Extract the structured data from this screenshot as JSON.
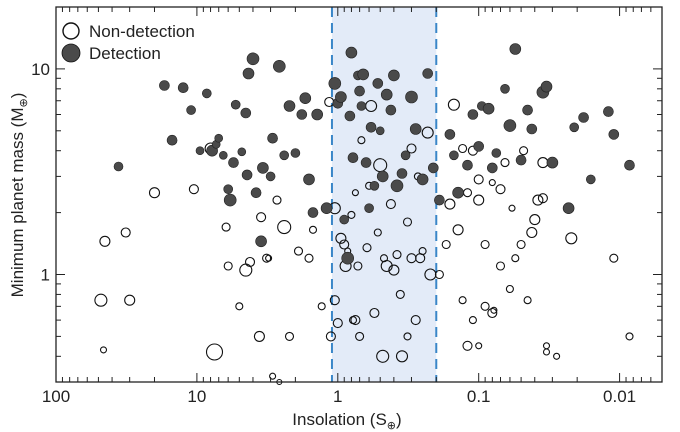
{
  "chart_data": {
    "type": "scatter",
    "xlabel": "Insolation (S",
    "xlabel_sub": "⊕",
    "xlabel_close": ")",
    "ylabel": "Minimum planet mass (M",
    "ylabel_sub": "⊕",
    "ylabel_close": ")",
    "xscale": "log",
    "yscale": "log",
    "x_reversed": true,
    "xlim": [
      100,
      0.005
    ],
    "ylim": [
      0.3,
      20
    ],
    "xticks": [
      {
        "value": 100,
        "label": "100"
      },
      {
        "value": 10,
        "label": "10"
      },
      {
        "value": 1,
        "label": "1"
      },
      {
        "value": 0.1,
        "label": "0.1"
      },
      {
        "value": 0.01,
        "label": "0.01"
      }
    ],
    "yticks": [
      {
        "value": 1,
        "label": "1"
      },
      {
        "value": 10,
        "label": "10"
      }
    ],
    "grid": false,
    "legend_position": "top-left",
    "shaded_band": {
      "x_from": 1.1,
      "x_to": 0.2,
      "color": "#e3ebf8",
      "edge_color": "#3a86c8"
    },
    "series": [
      {
        "name": "Non-detection",
        "style": "open",
        "color": "#111111",
        "points": [
          [
            48,
            0.75,
            12
          ],
          [
            45,
            1.45,
            10
          ],
          [
            32,
            1.6,
            9
          ],
          [
            30,
            0.75,
            10
          ],
          [
            20,
            2.5,
            10
          ],
          [
            46,
            0.43,
            6
          ],
          [
            10.5,
            2.6,
            9
          ],
          [
            8.0,
            4.1,
            11
          ],
          [
            7.5,
            0.42,
            16
          ],
          [
            6.2,
            1.7,
            8
          ],
          [
            6.0,
            1.1,
            8
          ],
          [
            5.0,
            0.7,
            7
          ],
          [
            4.5,
            1.05,
            12
          ],
          [
            4.2,
            1.15,
            9
          ],
          [
            3.6,
            0.5,
            10
          ],
          [
            3.5,
            1.9,
            9
          ],
          [
            3.2,
            1.2,
            8
          ],
          [
            3.1,
            1.2,
            6
          ],
          [
            2.9,
            0.32,
            6
          ],
          [
            2.7,
            2.3,
            8
          ],
          [
            2.6,
            0.3,
            5
          ],
          [
            2.4,
            1.7,
            13
          ],
          [
            2.2,
            0.5,
            8
          ],
          [
            1.9,
            1.3,
            8
          ],
          [
            1.6,
            1.2,
            8
          ],
          [
            1.5,
            1.65,
            7
          ],
          [
            1.3,
            0.7,
            7
          ],
          [
            1.15,
            6.9,
            9
          ],
          [
            1.12,
            0.5,
            9
          ],
          [
            1.05,
            2.1,
            11
          ],
          [
            1.05,
            0.75,
            9
          ],
          [
            1.0,
            0.58,
            9
          ],
          [
            0.95,
            1.5,
            10
          ],
          [
            0.9,
            1.4,
            9
          ],
          [
            0.88,
            1.1,
            11
          ],
          [
            0.85,
            1.3,
            6
          ],
          [
            0.8,
            1.95,
            7
          ],
          [
            0.78,
            0.6,
            7
          ],
          [
            0.75,
            0.6,
            9
          ],
          [
            0.75,
            2.5,
            6
          ],
          [
            0.72,
            1.1,
            8
          ],
          [
            0.7,
            0.5,
            8
          ],
          [
            0.68,
            4.5,
            7
          ],
          [
            0.62,
            1.35,
            8
          ],
          [
            0.6,
            2.7,
            7
          ],
          [
            0.58,
            6.6,
            11
          ],
          [
            0.55,
            0.65,
            9
          ],
          [
            0.52,
            1.6,
            7
          ],
          [
            0.5,
            3.4,
            13
          ],
          [
            0.48,
            0.4,
            12
          ],
          [
            0.47,
            1.2,
            7
          ],
          [
            0.45,
            1.1,
            11
          ],
          [
            0.42,
            2.2,
            9
          ],
          [
            0.4,
            1.05,
            10
          ],
          [
            0.38,
            1.25,
            8
          ],
          [
            0.36,
            0.8,
            8
          ],
          [
            0.35,
            0.4,
            11
          ],
          [
            0.32,
            0.5,
            7
          ],
          [
            0.32,
            1.8,
            8
          ],
          [
            0.3,
            4.1,
            9
          ],
          [
            0.3,
            1.2,
            9
          ],
          [
            0.28,
            0.6,
            9
          ],
          [
            0.27,
            3.0,
            7
          ],
          [
            0.26,
            1.2,
            9
          ],
          [
            0.25,
            1.3,
            7
          ],
          [
            0.23,
            4.9,
            11
          ],
          [
            0.22,
            1.0,
            11
          ],
          [
            0.19,
            1.0,
            8
          ],
          [
            0.17,
            1.4,
            8
          ],
          [
            0.16,
            2.2,
            10
          ],
          [
            0.15,
            6.7,
            11
          ],
          [
            0.14,
            1.65,
            10
          ],
          [
            0.13,
            0.75,
            7
          ],
          [
            0.13,
            4.1,
            8
          ],
          [
            0.12,
            2.5,
            8
          ],
          [
            0.12,
            0.45,
            9
          ],
          [
            0.11,
            4.0,
            9
          ],
          [
            0.11,
            0.6,
            7
          ],
          [
            0.1,
            2.9,
            9
          ],
          [
            0.1,
            2.3,
            10
          ],
          [
            0.1,
            0.45,
            6
          ],
          [
            0.09,
            1.4,
            8
          ],
          [
            0.09,
            0.7,
            8
          ],
          [
            0.08,
            0.65,
            9
          ],
          [
            0.08,
            2.8,
            6
          ],
          [
            0.078,
            0.67,
            6
          ],
          [
            0.07,
            1.1,
            8
          ],
          [
            0.07,
            2.6,
            9
          ],
          [
            0.065,
            3.5,
            8
          ],
          [
            0.06,
            0.85,
            7
          ],
          [
            0.058,
            2.1,
            6
          ],
          [
            0.055,
            1.2,
            7
          ],
          [
            0.05,
            1.4,
            8
          ],
          [
            0.048,
            4.0,
            8
          ],
          [
            0.045,
            0.75,
            7
          ],
          [
            0.042,
            1.6,
            10
          ],
          [
            0.04,
            1.85,
            10
          ],
          [
            0.038,
            2.3,
            10
          ],
          [
            0.035,
            2.35,
            9
          ],
          [
            0.035,
            3.5,
            10
          ],
          [
            0.033,
            0.45,
            6
          ],
          [
            0.033,
            0.42,
            6
          ],
          [
            0.028,
            0.4,
            6
          ],
          [
            0.022,
            1.5,
            11
          ],
          [
            0.011,
            1.2,
            8
          ],
          [
            0.0085,
            0.5,
            7
          ]
        ]
      },
      {
        "name": "Detection",
        "style": "filled",
        "color": "#4a4a4a",
        "points": [
          [
            36,
            3.35,
            9
          ],
          [
            17,
            8.3,
            10
          ],
          [
            15,
            4.5,
            10
          ],
          [
            12.5,
            8.1,
            10
          ],
          [
            9.5,
            4.0,
            8
          ],
          [
            11,
            6.3,
            9
          ],
          [
            8.5,
            7.6,
            9
          ],
          [
            7.8,
            4.0,
            11
          ],
          [
            7.3,
            4.3,
            8
          ],
          [
            7.0,
            4.6,
            8
          ],
          [
            6.5,
            3.8,
            8
          ],
          [
            6.0,
            2.6,
            9
          ],
          [
            5.8,
            2.3,
            12
          ],
          [
            5.5,
            3.5,
            10
          ],
          [
            5.3,
            6.7,
            9
          ],
          [
            4.8,
            3.95,
            8
          ],
          [
            4.5,
            6.1,
            10
          ],
          [
            4.4,
            3.05,
            10
          ],
          [
            4.3,
            9.5,
            11
          ],
          [
            4.0,
            11.2,
            12
          ],
          [
            3.8,
            2.5,
            10
          ],
          [
            3.5,
            1.45,
            11
          ],
          [
            3.4,
            3.3,
            11
          ],
          [
            3.0,
            3.0,
            9
          ],
          [
            2.9,
            4.6,
            10
          ],
          [
            2.6,
            10.3,
            12
          ],
          [
            2.4,
            3.8,
            9
          ],
          [
            2.2,
            6.6,
            11
          ],
          [
            2.0,
            3.9,
            9
          ],
          [
            1.8,
            6.0,
            10
          ],
          [
            1.7,
            7.2,
            11
          ],
          [
            1.6,
            2.9,
            11
          ],
          [
            1.5,
            2.0,
            10
          ],
          [
            1.4,
            6.0,
            11
          ],
          [
            1.2,
            2.1,
            11
          ],
          [
            1.05,
            8.5,
            12
          ],
          [
            1.0,
            6.8,
            10
          ],
          [
            0.95,
            7.3,
            11
          ],
          [
            0.9,
            1.85,
            9
          ],
          [
            0.85,
            1.2,
            12
          ],
          [
            0.82,
            5.9,
            10
          ],
          [
            0.8,
            12.0,
            11
          ],
          [
            0.78,
            3.7,
            10
          ],
          [
            0.72,
            9.3,
            9
          ],
          [
            0.7,
            7.8,
            10
          ],
          [
            0.68,
            6.6,
            9
          ],
          [
            0.66,
            9.4,
            11
          ],
          [
            0.63,
            3.5,
            10
          ],
          [
            0.6,
            2.1,
            9
          ],
          [
            0.58,
            5.2,
            10
          ],
          [
            0.55,
            2.7,
            9
          ],
          [
            0.52,
            8.5,
            10
          ],
          [
            0.5,
            5.0,
            8
          ],
          [
            0.48,
            3.0,
            11
          ],
          [
            0.45,
            7.5,
            11
          ],
          [
            0.42,
            6.3,
            10
          ],
          [
            0.4,
            9.3,
            11
          ],
          [
            0.38,
            2.7,
            12
          ],
          [
            0.35,
            3.1,
            10
          ],
          [
            0.33,
            3.8,
            9
          ],
          [
            0.3,
            7.3,
            12
          ],
          [
            0.28,
            5.1,
            11
          ],
          [
            0.25,
            2.9,
            11
          ],
          [
            0.23,
            9.5,
            10
          ],
          [
            0.21,
            3.3,
            10
          ],
          [
            0.19,
            2.3,
            10
          ],
          [
            0.16,
            4.8,
            10
          ],
          [
            0.15,
            3.8,
            9
          ],
          [
            0.14,
            2.5,
            11
          ],
          [
            0.12,
            3.4,
            10
          ],
          [
            0.11,
            6.0,
            10
          ],
          [
            0.1,
            4.2,
            10
          ],
          [
            0.095,
            6.6,
            9
          ],
          [
            0.085,
            6.4,
            11
          ],
          [
            0.08,
            3.3,
            10
          ],
          [
            0.075,
            3.9,
            9
          ],
          [
            0.065,
            8.0,
            9
          ],
          [
            0.06,
            5.3,
            12
          ],
          [
            0.055,
            12.5,
            11
          ],
          [
            0.05,
            3.6,
            10
          ],
          [
            0.045,
            6.3,
            10
          ],
          [
            0.042,
            5.1,
            10
          ],
          [
            0.035,
            7.7,
            12
          ],
          [
            0.033,
            8.2,
            11
          ],
          [
            0.03,
            3.5,
            11
          ],
          [
            0.023,
            2.1,
            11
          ],
          [
            0.018,
            5.8,
            10
          ],
          [
            0.016,
            2.9,
            9
          ],
          [
            0.012,
            6.2,
            10
          ],
          [
            0.011,
            4.8,
            10
          ],
          [
            0.0085,
            3.4,
            10
          ],
          [
            0.021,
            5.2,
            9
          ]
        ]
      }
    ]
  }
}
